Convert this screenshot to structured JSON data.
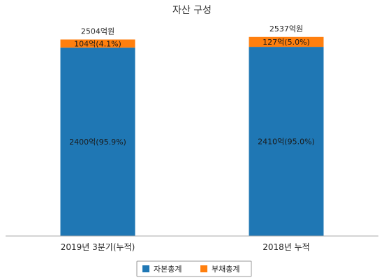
{
  "chart_data": {
    "type": "bar",
    "stacked": true,
    "title": "자산 구성",
    "categories": [
      "2019년 3분기(누적)",
      "2018년 누적"
    ],
    "ylim": [
      0,
      2740
    ],
    "grid": false,
    "legend_position": "bottom",
    "totals": [
      {
        "value": 2504,
        "label": "2504억원"
      },
      {
        "value": 2537,
        "label": "2537억원"
      }
    ],
    "series": [
      {
        "name": "자본총계",
        "color": "#1f77b4",
        "values": [
          2400,
          2410
        ],
        "labels": [
          "2400억(95.9%)",
          "2410억(95.0%)"
        ]
      },
      {
        "name": "부채총계",
        "color": "#ff7f0e",
        "values": [
          104,
          127
        ],
        "labels": [
          "104억(4.1%)",
          "127억(5.0%)"
        ]
      }
    ]
  }
}
